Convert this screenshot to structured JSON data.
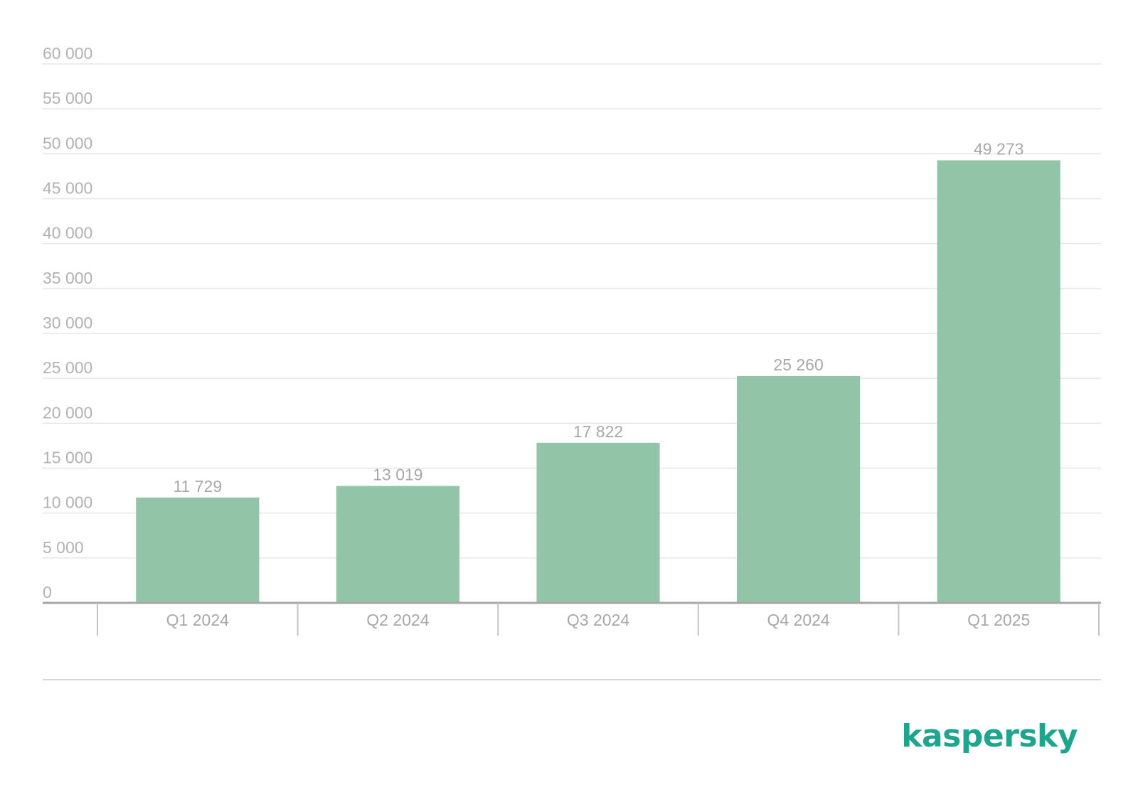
{
  "chart_data": {
    "type": "bar",
    "categories": [
      "Q1 2024",
      "Q2 2024",
      "Q3 2024",
      "Q4 2024",
      "Q1 2025"
    ],
    "values": [
      11729,
      13019,
      17822,
      25260,
      49273
    ],
    "value_labels": [
      "11 729",
      "13 019",
      "17 822",
      "25 260",
      "49 273"
    ],
    "y_ticks": [
      0,
      5000,
      10000,
      15000,
      20000,
      25000,
      30000,
      35000,
      40000,
      45000,
      50000,
      55000,
      60000
    ],
    "y_tick_labels": [
      "0",
      "5 000",
      "10 000",
      "15 000",
      "20 000",
      "25 000",
      "30 000",
      "35 000",
      "40 000",
      "45 000",
      "50 000",
      "55 000",
      "60 000"
    ],
    "ylim": [
      0,
      60000
    ],
    "title": "",
    "xlabel": "",
    "ylabel": "",
    "grid": true,
    "legend": "none",
    "colors": {
      "bar": "#92c4a8",
      "grid": "#e6e6e6",
      "axis": "#a6a6a6",
      "text": "#a8a8a8"
    }
  },
  "brand": {
    "logo_text": "kaspersky",
    "color": "#1ea58e"
  }
}
